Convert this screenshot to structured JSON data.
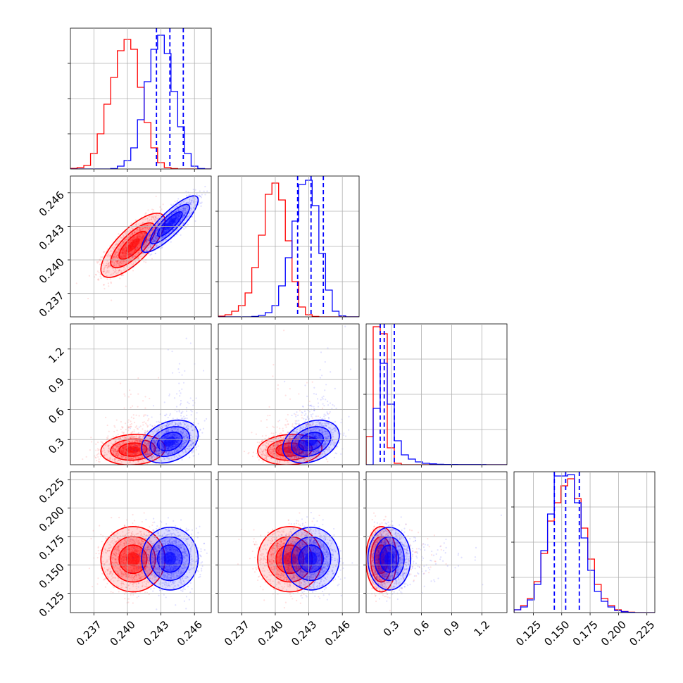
{
  "chart_data": {
    "type": "corner",
    "title": "",
    "grid": true,
    "parameters": [
      {
        "ticks": [
          0.237,
          0.24,
          0.243,
          0.246
        ],
        "tick_labels": [
          "0.237",
          "0.240",
          "0.243",
          "0.246"
        ],
        "range": [
          0.2349,
          0.2475
        ]
      },
      {
        "ticks": [
          0.237,
          0.24,
          0.243,
          0.246
        ],
        "tick_labels": [
          "0.237",
          "0.240",
          "0.243",
          "0.246"
        ],
        "range": [
          0.2349,
          0.2475
        ]
      },
      {
        "ticks": [
          0.3,
          0.6,
          0.9,
          1.2
        ],
        "tick_labels": [
          "0.3",
          "0.6",
          "0.9",
          "1.2"
        ],
        "range": [
          0.05,
          1.45
        ]
      },
      {
        "ticks": [
          0.125,
          0.15,
          0.175,
          0.2,
          0.225
        ],
        "tick_labels": [
          "0.125",
          "0.150",
          "0.175",
          "0.200",
          "0.225"
        ],
        "range": [
          0.108,
          0.232
        ]
      }
    ],
    "series": [
      {
        "color": "#ff0000",
        "means": [
          0.2405,
          0.2413,
          0.2,
          0.155
        ],
        "sds": [
          0.00125,
          0.00125,
          0.042,
          0.0125
        ],
        "corr": {
          "0-1": 0.75,
          "0-2": 0.1,
          "0-3": 0.0,
          "1-2": 0.1,
          "1-3": 0.0,
          "2-3": 0.0
        },
        "hist": [
          {
            "edges": [
              0.2349,
              0.2475
            ],
            "heights": [
              0.004,
              0.01,
              0.025,
              0.11,
              0.25,
              0.46,
              0.65,
              0.84,
              0.92,
              0.85,
              0.58,
              0.33,
              0.15,
              0.045,
              0.01,
              0.003,
              0,
              0,
              0,
              0,
              0
            ]
          },
          {
            "edges": [
              0.2349,
              0.2475
            ],
            "heights": [
              0.005,
              0.015,
              0.04,
              0.08,
              0.17,
              0.35,
              0.58,
              0.87,
              0.95,
              0.83,
              0.54,
              0.25,
              0.07,
              0.015,
              0.003,
              0,
              0,
              0,
              0,
              0,
              0
            ]
          },
          {
            "edges": [
              0.05,
              1.45
            ],
            "heights": [
              0.2,
              0.98,
              0.93,
              0.12,
              0.01,
              0,
              0,
              0,
              0,
              0,
              0,
              0,
              0,
              0,
              0,
              0,
              0,
              0,
              0,
              0
            ]
          },
          {
            "edges": [
              0.108,
              0.232
            ],
            "heights": [
              0.02,
              0.05,
              0.1,
              0.22,
              0.42,
              0.65,
              0.78,
              0.9,
              0.95,
              0.81,
              0.6,
              0.38,
              0.2,
              0.1,
              0.05,
              0.02,
              0.008,
              0.003,
              0,
              0,
              0
            ]
          }
        ]
      },
      {
        "color": "#0000ff",
        "means": [
          0.2438,
          0.2432,
          0.28,
          0.1555
        ],
        "sds": [
          0.0011,
          0.0011,
          0.09,
          0.012
        ],
        "corr": {
          "0-1": 0.85,
          "0-2": 0.3,
          "0-3": 0.0,
          "1-2": 0.3,
          "1-3": 0.0,
          "2-3": 0.0
        },
        "quantiles": [
          [
            0.2426,
            0.2438,
            0.245
          ],
          [
            0.242,
            0.2432,
            0.2443
          ],
          [
            0.19,
            0.23,
            0.33
          ],
          [
            0.1435,
            0.1535,
            0.1655
          ]
        ],
        "hist": [
          {
            "edges": [
              0.2349,
              0.2475
            ],
            "heights": [
              0,
              0,
              0,
              0,
              0,
              0,
              0.003,
              0.02,
              0.06,
              0.15,
              0.35,
              0.62,
              0.85,
              0.95,
              0.82,
              0.55,
              0.3,
              0.11,
              0.02,
              0.003,
              0
            ]
          },
          {
            "edges": [
              0.2349,
              0.2475
            ],
            "heights": [
              0,
              0,
              0,
              0,
              0,
              0.003,
              0.01,
              0.03,
              0.08,
              0.22,
              0.42,
              0.68,
              0.94,
              0.97,
              0.79,
              0.45,
              0.19,
              0.04,
              0.007,
              0,
              0
            ]
          },
          {
            "edges": [
              0.05,
              1.45
            ],
            "heights": [
              0,
              0.4,
              0.72,
              0.43,
              0.17,
              0.07,
              0.04,
              0.02,
              0.01,
              0.006,
              0.003,
              0.002,
              0.002,
              0.001,
              0.001,
              0.001,
              0.001,
              0,
              0,
              0
            ]
          },
          {
            "edges": [
              0.108,
              0.232
            ],
            "heights": [
              0.02,
              0.04,
              0.09,
              0.2,
              0.44,
              0.7,
              0.97,
              0.97,
              0.98,
              0.78,
              0.53,
              0.3,
              0.15,
              0.08,
              0.04,
              0.015,
              0.006,
              0.002,
              0,
              0,
              0
            ]
          }
        ]
      }
    ]
  }
}
